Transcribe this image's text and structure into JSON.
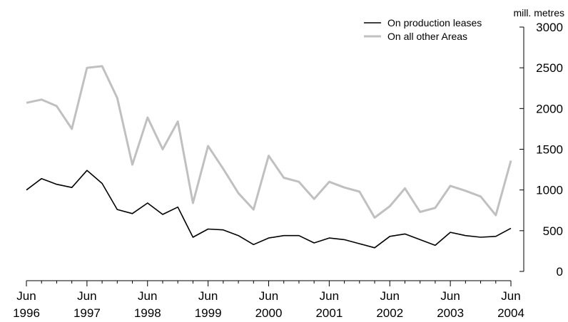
{
  "chart_data": {
    "type": "line",
    "unit_label": "mill. metres",
    "y_ticks": [
      0,
      500,
      1000,
      1500,
      2000,
      2500,
      3000
    ],
    "y_tick_labels": [
      "0",
      "500",
      "1000",
      "1500",
      "2000",
      "2500",
      "3000"
    ],
    "x_ticks": [
      {
        "month": "Jun",
        "year": "1996"
      },
      {
        "month": "Jun",
        "year": "1997"
      },
      {
        "month": "Jun",
        "year": "1998"
      },
      {
        "month": "Jun",
        "year": "1999"
      },
      {
        "month": "Jun",
        "year": "2000"
      },
      {
        "month": "Jun",
        "year": "2001"
      },
      {
        "month": "Jun",
        "year": "2002"
      },
      {
        "month": "Jun",
        "year": "2003"
      },
      {
        "month": "Jun",
        "year": "2004"
      }
    ],
    "ylim": [
      0,
      3000
    ],
    "x": [
      "1996-06",
      "1996-09",
      "1996-12",
      "1997-03",
      "1997-06",
      "1997-09",
      "1997-12",
      "1998-03",
      "1998-06",
      "1998-09",
      "1998-12",
      "1999-03",
      "1999-06",
      "1999-09",
      "1999-12",
      "2000-03",
      "2000-06",
      "2000-09",
      "2000-12",
      "2001-03",
      "2001-06",
      "2001-09",
      "2001-12",
      "2002-03",
      "2002-06",
      "2002-09",
      "2002-12",
      "2003-03",
      "2003-06",
      "2003-09",
      "2003-12",
      "2004-03",
      "2004-06"
    ],
    "series": [
      {
        "name": "On production leases",
        "color": "#000000",
        "values": [
          1000,
          1140,
          1070,
          1030,
          1240,
          1080,
          760,
          710,
          840,
          700,
          790,
          420,
          520,
          510,
          440,
          330,
          410,
          440,
          440,
          350,
          410,
          390,
          340,
          290,
          430,
          460,
          390,
          320,
          480,
          440,
          420,
          430,
          530
        ]
      },
      {
        "name": "On all other Areas",
        "color": "#c0c0c0",
        "values": [
          2070,
          2110,
          2030,
          1750,
          2500,
          2520,
          2130,
          1310,
          1890,
          1500,
          1840,
          840,
          1540,
          1260,
          960,
          760,
          1420,
          1150,
          1100,
          890,
          1100,
          1030,
          980,
          660,
          800,
          1020,
          730,
          780,
          1050,
          990,
          920,
          690,
          1360
        ]
      }
    ],
    "legend_position": "top-right",
    "grid": false
  }
}
